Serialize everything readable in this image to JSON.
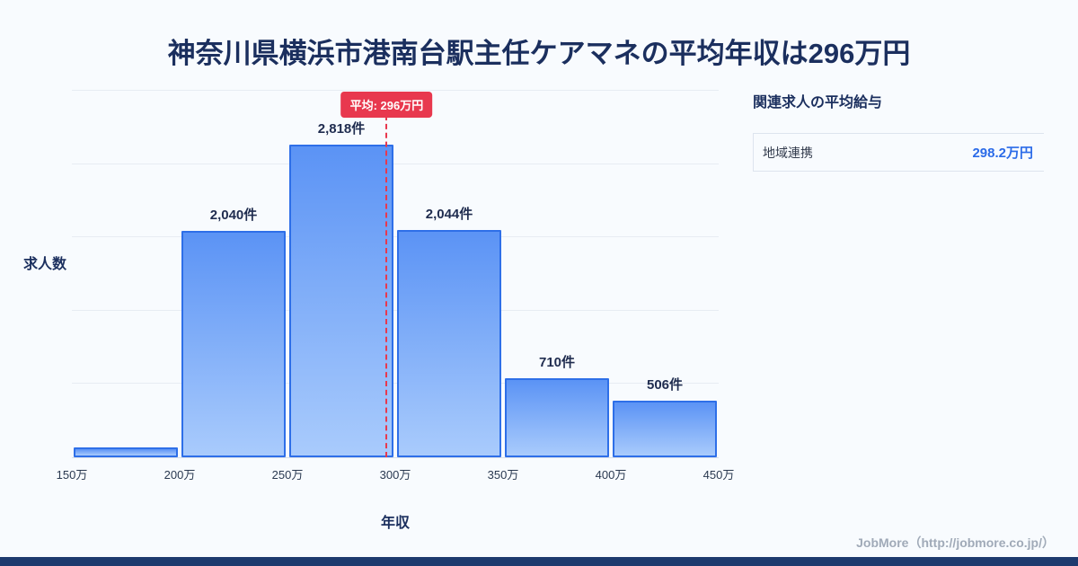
{
  "page_title": "神奈川県横浜市港南台駅主任ケアマネの平均年収は296万円",
  "chart_data": {
    "type": "bar",
    "title": "神奈川県横浜市港南台駅主任ケアマネの平均年収は296万円",
    "xlabel": "年収",
    "ylabel": "求人数",
    "x_domain": [
      150,
      450
    ],
    "x_tick_labels": [
      "150万",
      "200万",
      "250万",
      "300万",
      "350万",
      "400万",
      "450万"
    ],
    "bins": [
      [
        150,
        200
      ],
      [
        200,
        250
      ],
      [
        250,
        300
      ],
      [
        300,
        350
      ],
      [
        350,
        400
      ],
      [
        400,
        450
      ]
    ],
    "values": [
      90,
      2040,
      2818,
      2044,
      710,
      506
    ],
    "bar_labels": [
      "",
      "2,040件",
      "2,818件",
      "2,044件",
      "710件",
      "506件"
    ],
    "ylim": [
      0,
      3300
    ],
    "grid": "horizontal",
    "legend": "none",
    "average": {
      "label": "平均: 296万円",
      "x_value": 296
    },
    "colors": {
      "bar_top": "#5b93f5",
      "bar_bottom": "#a9cbfc",
      "bar_border": "#2e6fe8",
      "average_line": "#e8384e",
      "badge_bg": "#e8384e",
      "title_text": "#1b2f5e"
    }
  },
  "side_panel": {
    "heading": "関連求人の平均給与",
    "rows": [
      {
        "label": "地域連携",
        "value": "298.2万円"
      }
    ]
  },
  "attribution": "JobMore（http://jobmore.co.jp/）",
  "colors": {
    "footer_bar": "#1d3a6e",
    "background": "#f8fbfe"
  }
}
